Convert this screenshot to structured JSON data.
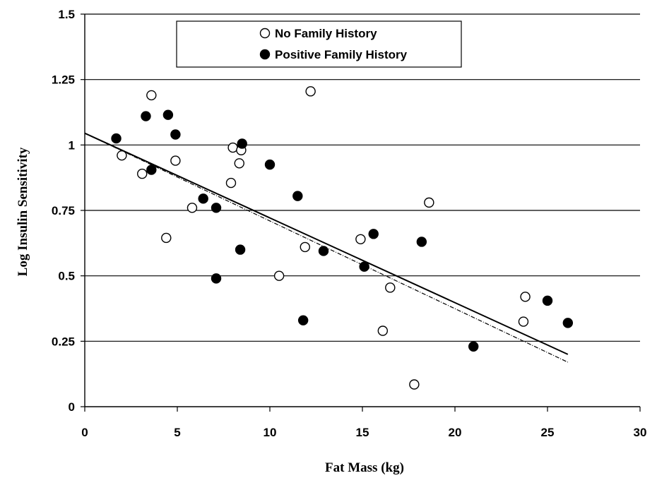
{
  "chart_data": {
    "type": "scatter",
    "xlabel": "Fat Mass (kg)",
    "ylabel": "Log Insulin Sensitivity",
    "xlim": [
      0,
      30
    ],
    "ylim": [
      0,
      1.5
    ],
    "x_ticks": [
      "0",
      "5",
      "10",
      "15",
      "20",
      "25",
      "30"
    ],
    "y_ticks": [
      "0",
      "0.25",
      "0.5",
      "0.75",
      "1",
      "1.25",
      "1.5"
    ],
    "grid": "horizontal",
    "legend_position": "top-center",
    "series": [
      {
        "name": "No Family History",
        "marker": "open-circle",
        "color": "#000000",
        "points": [
          {
            "x": 2.0,
            "y": 0.96
          },
          {
            "x": 3.1,
            "y": 0.89
          },
          {
            "x": 3.6,
            "y": 1.19
          },
          {
            "x": 4.4,
            "y": 0.645
          },
          {
            "x": 4.9,
            "y": 0.94
          },
          {
            "x": 5.8,
            "y": 0.76
          },
          {
            "x": 7.9,
            "y": 0.855
          },
          {
            "x": 8.0,
            "y": 0.99
          },
          {
            "x": 8.35,
            "y": 0.93
          },
          {
            "x": 8.45,
            "y": 0.98
          },
          {
            "x": 10.5,
            "y": 0.5
          },
          {
            "x": 11.9,
            "y": 0.61
          },
          {
            "x": 12.2,
            "y": 1.205
          },
          {
            "x": 14.9,
            "y": 0.64
          },
          {
            "x": 16.1,
            "y": 0.29
          },
          {
            "x": 16.5,
            "y": 0.455
          },
          {
            "x": 17.8,
            "y": 0.085
          },
          {
            "x": 18.6,
            "y": 0.78
          },
          {
            "x": 23.7,
            "y": 0.325
          },
          {
            "x": 23.8,
            "y": 0.42
          }
        ]
      },
      {
        "name": "Positive Family History",
        "marker": "filled-circle",
        "color": "#000000",
        "points": [
          {
            "x": 1.7,
            "y": 1.025
          },
          {
            "x": 3.3,
            "y": 1.11
          },
          {
            "x": 3.6,
            "y": 0.905
          },
          {
            "x": 4.5,
            "y": 1.115
          },
          {
            "x": 4.9,
            "y": 1.04
          },
          {
            "x": 6.4,
            "y": 0.795
          },
          {
            "x": 7.1,
            "y": 0.76
          },
          {
            "x": 7.1,
            "y": 0.49
          },
          {
            "x": 8.4,
            "y": 0.6
          },
          {
            "x": 8.5,
            "y": 1.005
          },
          {
            "x": 10.0,
            "y": 0.925
          },
          {
            "x": 11.5,
            "y": 0.805
          },
          {
            "x": 11.8,
            "y": 0.33
          },
          {
            "x": 12.9,
            "y": 0.595
          },
          {
            "x": 15.1,
            "y": 0.535
          },
          {
            "x": 15.6,
            "y": 0.66
          },
          {
            "x": 18.2,
            "y": 0.63
          },
          {
            "x": 21.0,
            "y": 0.23
          },
          {
            "x": 25.0,
            "y": 0.405
          },
          {
            "x": 26.1,
            "y": 0.32
          }
        ]
      }
    ],
    "trendlines": [
      {
        "style": "solid",
        "x": [
          0,
          26.1
        ],
        "y": [
          1.045,
          0.2
        ]
      },
      {
        "style": "dashed",
        "x": [
          0,
          26.1
        ],
        "y": [
          1.045,
          0.17
        ]
      }
    ]
  }
}
